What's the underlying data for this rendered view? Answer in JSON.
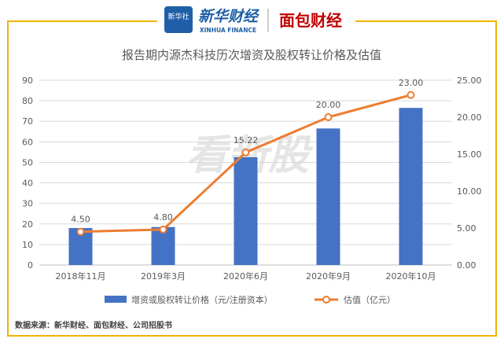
{
  "header": {
    "brand_badge": "新华社",
    "brand_name": "新华财经",
    "brand_sub": "XINHUA FINANCE",
    "partner_name": "面包财经"
  },
  "watermark": "看新股",
  "source_note": "数据来源：新华财经、面包财经、公司招股书",
  "colors": {
    "frame": "#f0b400",
    "bar": "#4472c4",
    "line": "#ed7d31",
    "title": "#595959",
    "axis_text": "#595959",
    "grid": "#d9d9d9",
    "brand_blue": "#1f5fa8",
    "brand_red": "#c00000"
  },
  "chart_data": {
    "type": "bar",
    "title": "报告期内源杰科技历次增资及股权转让价格及估值",
    "categories": [
      "2018年11月",
      "2019年3月",
      "2020年6月",
      "2020年9月",
      "2020年10月"
    ],
    "series": [
      {
        "name": "增资或股权转让价格（元/注册资本）",
        "type": "bar",
        "axis": "left",
        "values": [
          18,
          18.5,
          52.5,
          66.5,
          76.5
        ]
      },
      {
        "name": "估值（亿元）",
        "type": "line",
        "axis": "right",
        "values": [
          4.5,
          4.8,
          15.22,
          20.0,
          23.0
        ],
        "labels": [
          "4.50",
          "4.80",
          "15.22",
          "20.00",
          "23.00"
        ]
      }
    ],
    "y_left": {
      "min": 0,
      "max": 90,
      "step": 10,
      "ticks": [
        "0",
        "10",
        "20",
        "30",
        "40",
        "50",
        "60",
        "70",
        "80",
        "90"
      ]
    },
    "y_right": {
      "min": 0,
      "max": 25,
      "step": 5,
      "ticks": [
        "0.00",
        "5.00",
        "10.00",
        "15.00",
        "20.00",
        "25.00"
      ]
    },
    "grid": true,
    "legend_position": "bottom"
  }
}
